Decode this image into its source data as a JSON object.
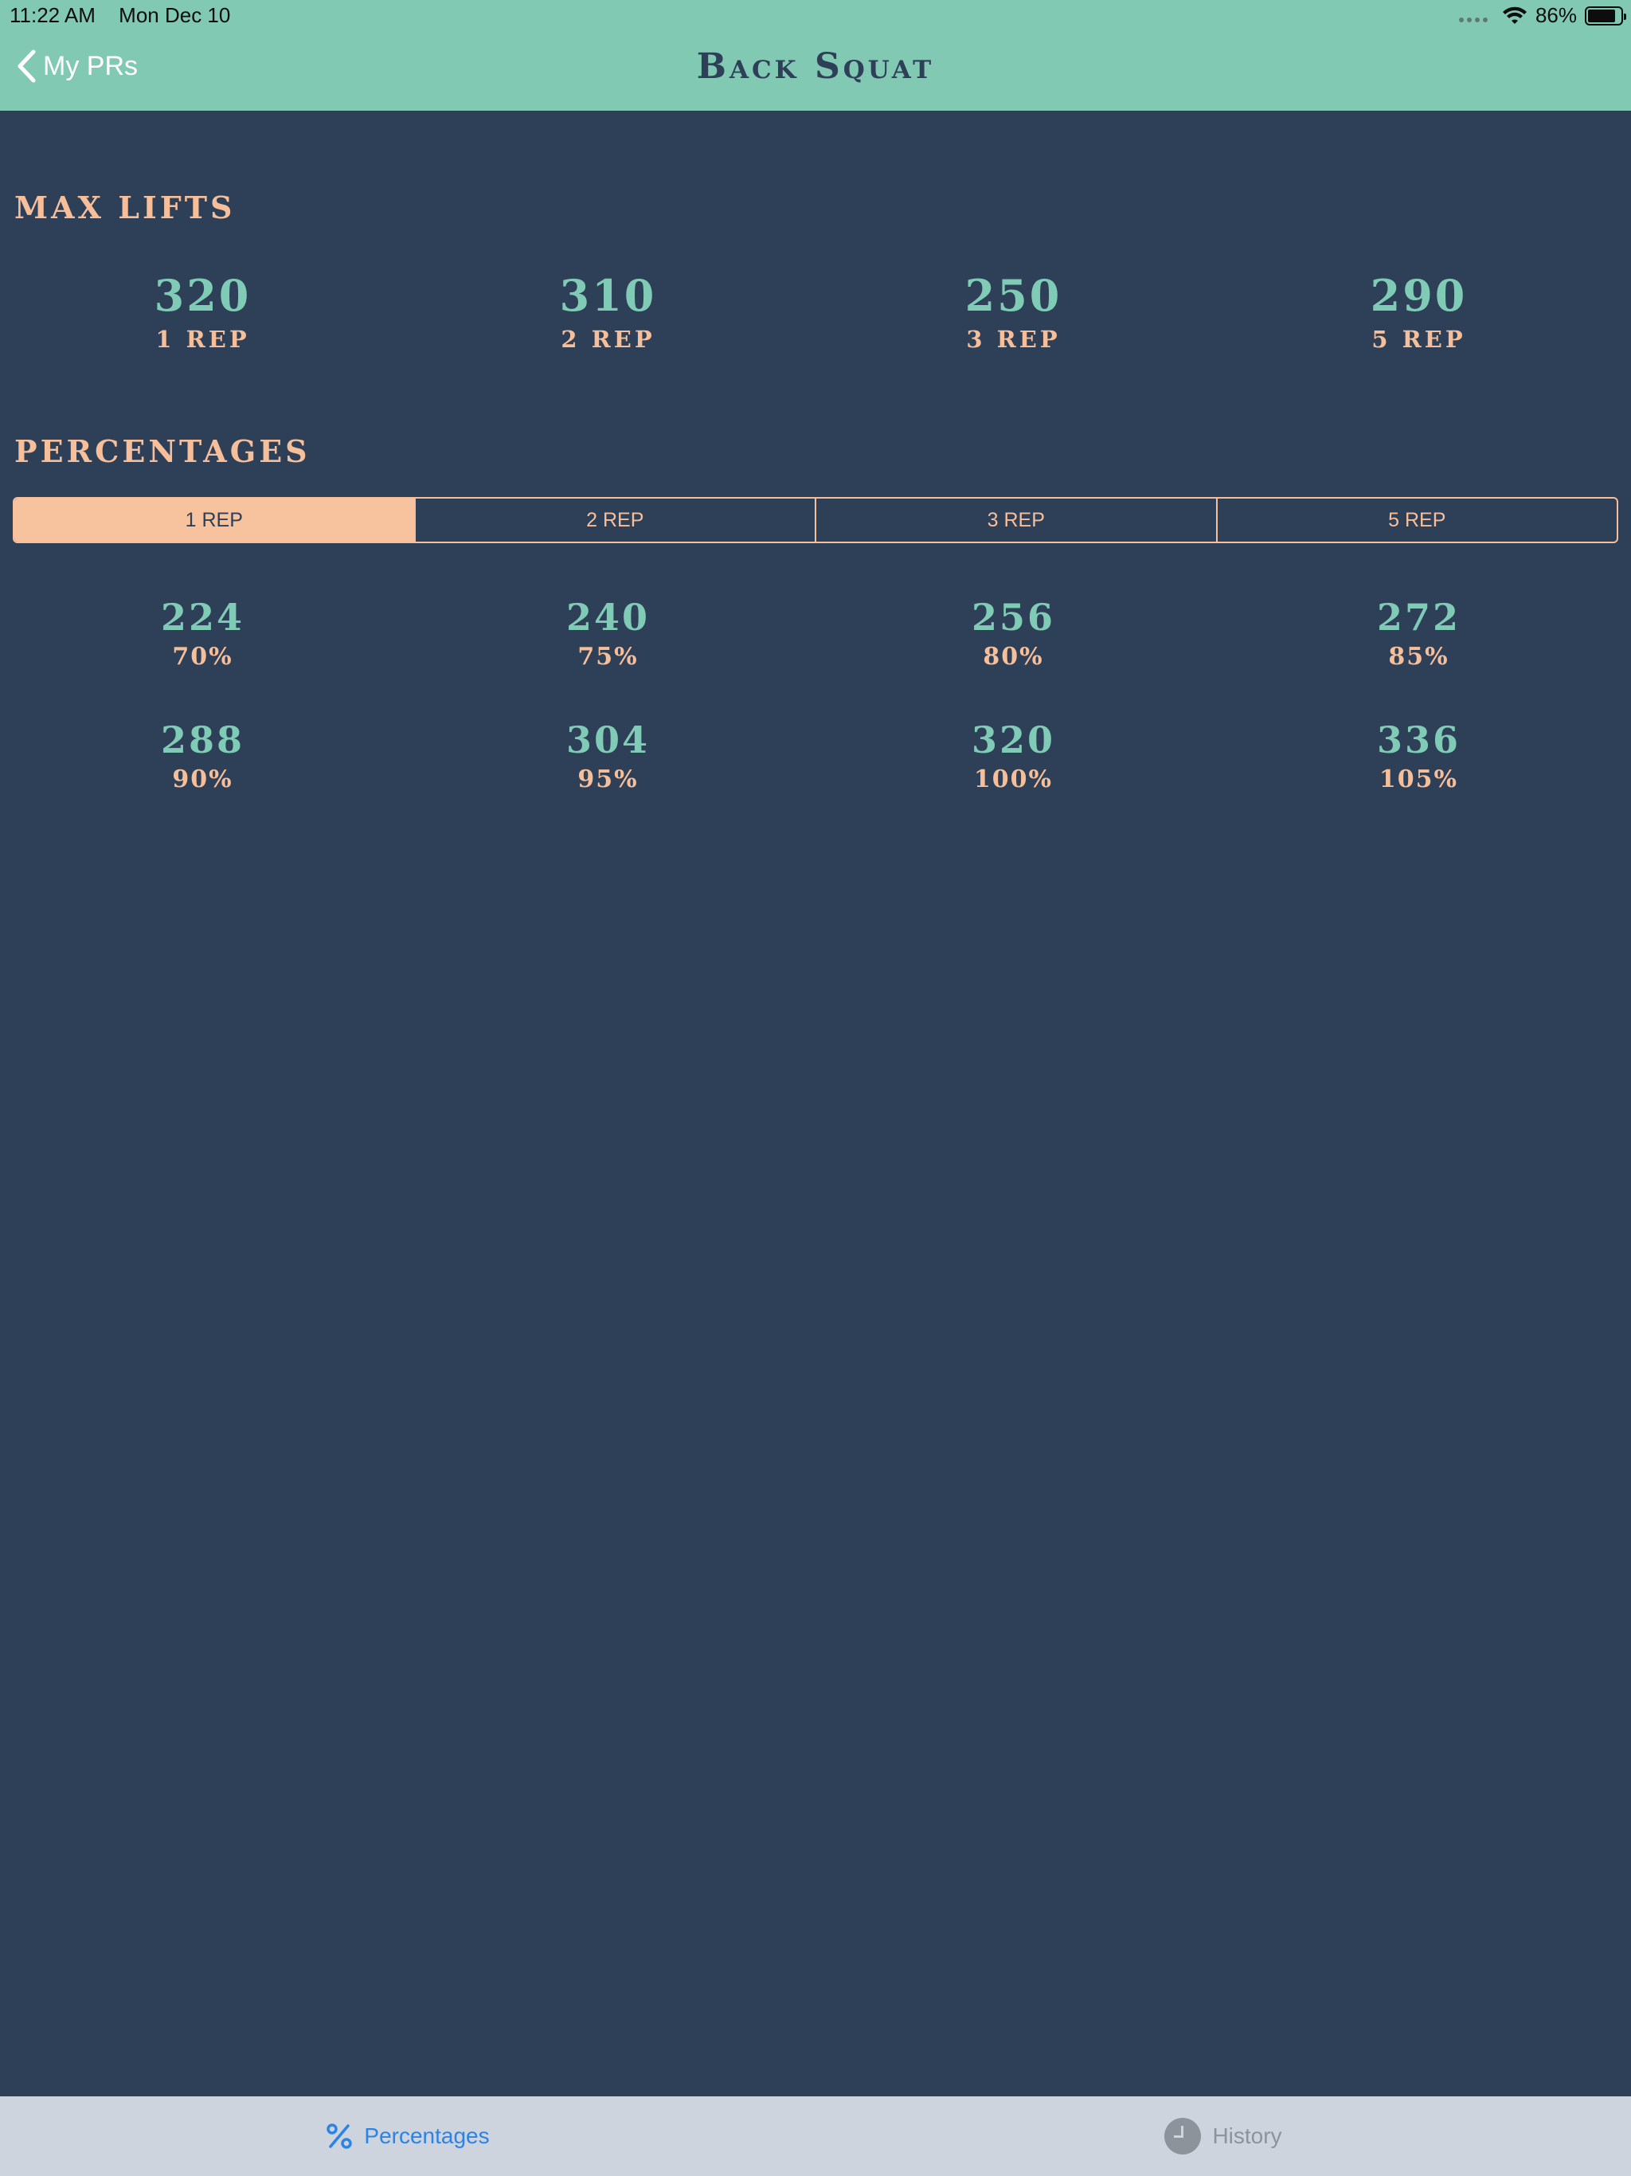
{
  "status_bar": {
    "time": "11:22 AM",
    "date": "Mon Dec 10",
    "battery": "86%",
    "battery_level": 0.86
  },
  "nav": {
    "back_label": "My PRs",
    "title": "Back Squat"
  },
  "max_lifts": {
    "heading": "MAX LIFTS",
    "items": [
      {
        "value": "320",
        "label": "1 REP"
      },
      {
        "value": "310",
        "label": "2 REP"
      },
      {
        "value": "250",
        "label": "3 REP"
      },
      {
        "value": "290",
        "label": "5 REP"
      }
    ]
  },
  "percentages": {
    "heading": "PERCENTAGES",
    "segments": [
      "1 REP",
      "2 REP",
      "3 REP",
      "5 REP"
    ],
    "selected_segment": "1 REP",
    "rows": [
      [
        {
          "value": "224",
          "pct": "70%"
        },
        {
          "value": "240",
          "pct": "75%"
        },
        {
          "value": "256",
          "pct": "80%"
        },
        {
          "value": "272",
          "pct": "85%"
        }
      ],
      [
        {
          "value": "288",
          "pct": "90%"
        },
        {
          "value": "304",
          "pct": "95%"
        },
        {
          "value": "320",
          "pct": "100%"
        },
        {
          "value": "336",
          "pct": "105%"
        }
      ]
    ]
  },
  "tabbar": {
    "tabs": [
      {
        "label": "Percentages",
        "icon": "percent-icon",
        "active": true
      },
      {
        "label": "History",
        "icon": "clock-icon",
        "active": false
      }
    ]
  },
  "colors": {
    "background": "#2e3f58",
    "header": "#82c9b4",
    "accent_teal": "#7fcbb5",
    "accent_peach": "#f6bf9a",
    "tab_active": "#2c83e6"
  }
}
